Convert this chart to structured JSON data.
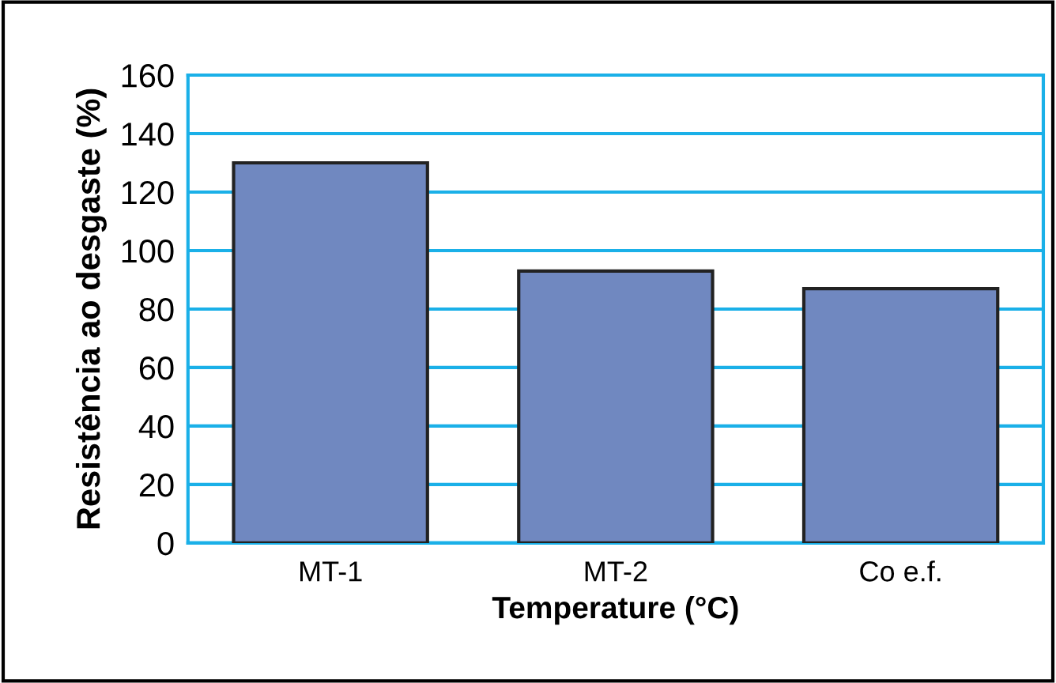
{
  "chart_data": {
    "type": "bar",
    "xlabel": "Temperature (°C)",
    "ylabel": "Resistência ao desgaste (%)",
    "categories": [
      "MT-1",
      "MT-2",
      "Co e.f."
    ],
    "values": [
      130,
      93,
      87
    ],
    "color": "#7088c0",
    "ylim": [
      0,
      160
    ],
    "yticks": [
      0,
      20,
      40,
      60,
      80,
      100,
      120,
      140,
      160
    ],
    "grid": "y"
  }
}
